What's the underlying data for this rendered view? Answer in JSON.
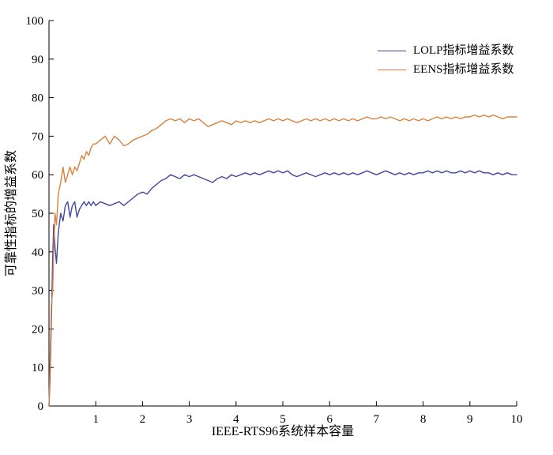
{
  "chart_data": {
    "type": "line",
    "title": "",
    "xlabel": "IEEE-RTS96系统样本容量",
    "ylabel": "可靠性指标的增益系数",
    "xlim": [
      0,
      10
    ],
    "ylim": [
      0,
      100
    ],
    "x_ticks": [
      1,
      2,
      3,
      4,
      5,
      6,
      7,
      8,
      9,
      10
    ],
    "y_ticks": [
      0,
      10,
      20,
      30,
      40,
      50,
      60,
      70,
      80,
      90,
      100
    ],
    "grid": false,
    "legend_position": "upper-right-inside",
    "x": [
      0,
      0.02,
      0.05,
      0.08,
      0.1,
      0.13,
      0.16,
      0.2,
      0.25,
      0.3,
      0.35,
      0.4,
      0.45,
      0.5,
      0.55,
      0.6,
      0.65,
      0.7,
      0.75,
      0.8,
      0.85,
      0.9,
      0.95,
      1,
      1.1,
      1.2,
      1.3,
      1.4,
      1.5,
      1.6,
      1.7,
      1.8,
      1.9,
      2,
      2.1,
      2.2,
      2.3,
      2.4,
      2.5,
      2.6,
      2.7,
      2.8,
      2.9,
      3,
      3.1,
      3.2,
      3.3,
      3.4,
      3.5,
      3.6,
      3.7,
      3.8,
      3.9,
      4,
      4.1,
      4.2,
      4.3,
      4.4,
      4.5,
      4.6,
      4.7,
      4.8,
      4.9,
      5,
      5.1,
      5.2,
      5.3,
      5.4,
      5.5,
      5.6,
      5.7,
      5.8,
      5.9,
      6,
      6.1,
      6.2,
      6.3,
      6.4,
      6.5,
      6.6,
      6.7,
      6.8,
      6.9,
      7,
      7.1,
      7.2,
      7.3,
      7.4,
      7.5,
      7.6,
      7.7,
      7.8,
      7.9,
      8,
      8.1,
      8.2,
      8.3,
      8.4,
      8.5,
      8.6,
      8.7,
      8.8,
      8.9,
      9,
      9.1,
      9.2,
      9.3,
      9.4,
      9.5,
      9.6,
      9.7,
      9.8,
      9.9,
      10
    ],
    "series": [
      {
        "name": "LOLP指标增益系数",
        "color": "#44489d",
        "values": [
          0,
          6,
          22,
          38,
          47,
          41,
          37,
          45,
          50,
          48,
          52,
          53,
          49,
          52,
          53,
          49,
          51,
          52,
          53,
          52,
          53,
          52,
          53,
          52,
          53,
          52.5,
          52,
          52.5,
          53,
          52,
          53,
          54,
          55,
          55.5,
          55,
          56.5,
          57.5,
          58.5,
          59,
          60,
          59.5,
          59,
          60,
          59.5,
          60,
          59.5,
          59,
          58.5,
          58,
          59,
          59.5,
          59,
          60,
          59.5,
          60,
          60.5,
          60,
          60.5,
          60,
          60.5,
          61,
          60.5,
          61,
          60.5,
          61,
          60,
          59.5,
          60,
          60.5,
          60,
          59.5,
          60,
          60.5,
          60,
          60.5,
          60,
          60.5,
          60,
          60.5,
          60,
          60.5,
          61,
          60.5,
          60,
          60.5,
          61,
          60.5,
          60,
          60.5,
          60,
          60.5,
          60,
          60.5,
          60.5,
          61,
          60.5,
          61,
          60.5,
          61,
          60.5,
          60.5,
          61,
          60.5,
          61,
          60.5,
          61,
          60.5,
          60.5,
          60,
          60.5,
          60,
          60.5,
          60,
          60
        ]
      },
      {
        "name": "EENS指标增益系数",
        "color": "#d9823f",
        "values": [
          0,
          10,
          26,
          30,
          40,
          50,
          47,
          55,
          58,
          62,
          58,
          60,
          62,
          60,
          62,
          61,
          63,
          65,
          64,
          66,
          65,
          67,
          68,
          68,
          69,
          70,
          68,
          70,
          69,
          67.5,
          68,
          69,
          69.5,
          70,
          70.5,
          71.5,
          72,
          73,
          74,
          74.5,
          74,
          74.5,
          73.5,
          74.5,
          74,
          74.5,
          73.5,
          72.5,
          73,
          73.5,
          74,
          73.5,
          73,
          74,
          73.5,
          74,
          73.5,
          74,
          73.5,
          74,
          74.5,
          74,
          74.5,
          74,
          74.5,
          74,
          73.5,
          74,
          74.5,
          74,
          74.5,
          74,
          74.5,
          74,
          74.5,
          74,
          74.5,
          74,
          74.5,
          74,
          74.5,
          75,
          74.5,
          74.5,
          75,
          74.5,
          75,
          74.5,
          74,
          74.5,
          74,
          74.5,
          74,
          74.5,
          74,
          74.5,
          75,
          74.5,
          75,
          74.5,
          75,
          74.5,
          75,
          75,
          75.5,
          75,
          75.5,
          75,
          75.5,
          75,
          74.5,
          75,
          75,
          75
        ]
      }
    ]
  }
}
